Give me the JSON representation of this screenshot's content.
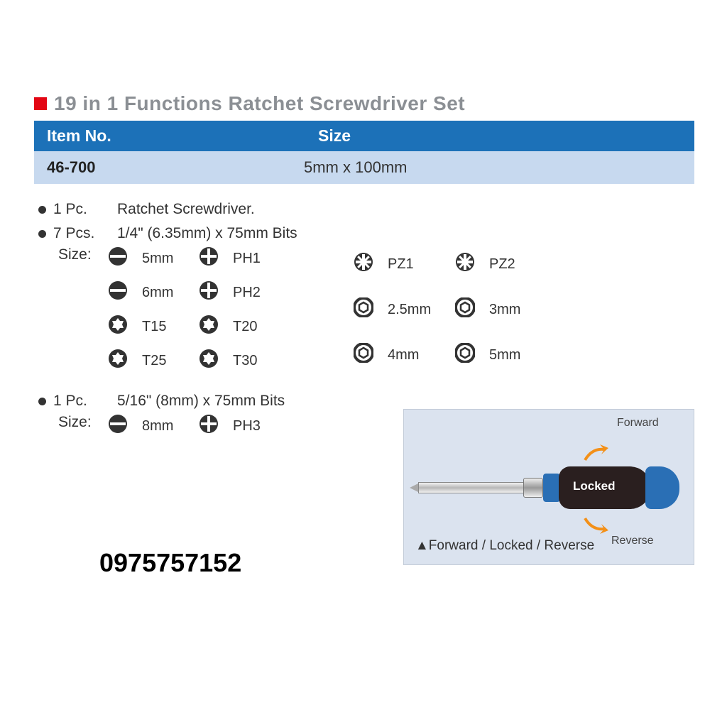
{
  "title": "19 in 1 Functions Ratchet Screwdriver Set",
  "header": {
    "col1": "Item No.",
    "col2": "Size"
  },
  "row": {
    "item_no": "46-700",
    "size": "5mm x 100mm"
  },
  "lines": {
    "line1_qty": "1 Pc.",
    "line1_desc": "Ratchet Screwdriver.",
    "line2_qty": "7 Pcs.",
    "line2_desc": "1/4\" (6.35mm) x 75mm Bits",
    "line3_qty": "1 Pc.",
    "line3_desc": "5/16\" (8mm) x 75mm Bits",
    "size_label": "Size:"
  },
  "bits_left": [
    {
      "icon": "slot",
      "label": "5mm"
    },
    {
      "icon": "ph",
      "label": "PH1"
    },
    {
      "icon": "slot",
      "label": "6mm"
    },
    {
      "icon": "ph",
      "label": "PH2"
    },
    {
      "icon": "torx",
      "label": "T15"
    },
    {
      "icon": "torx",
      "label": "T20"
    },
    {
      "icon": "torx",
      "label": "T25"
    },
    {
      "icon": "torx",
      "label": "T30"
    }
  ],
  "bits_right": [
    {
      "icon": "pz",
      "label": "PZ1"
    },
    {
      "icon": "pz",
      "label": "PZ2"
    },
    {
      "icon": "hex",
      "label": "2.5mm"
    },
    {
      "icon": "hex",
      "label": "3mm"
    },
    {
      "icon": "hex",
      "label": "4mm"
    },
    {
      "icon": "hex",
      "label": "5mm"
    }
  ],
  "bits_large": [
    {
      "icon": "slot",
      "label": "8mm"
    },
    {
      "icon": "ph",
      "label": "PH3"
    }
  ],
  "diagram": {
    "forward": "Forward",
    "locked": "Locked",
    "reverse": "Reverse",
    "caption": "▲Forward / Locked / Reverse"
  },
  "phone": "0975757152",
  "colors": {
    "header_bg": "#1c71b8",
    "row_bg": "#c7d9ef",
    "red": "#e30613",
    "title_grey": "#8b8f94",
    "diagram_bg": "#dbe3ef",
    "arrow": "#f39018"
  }
}
